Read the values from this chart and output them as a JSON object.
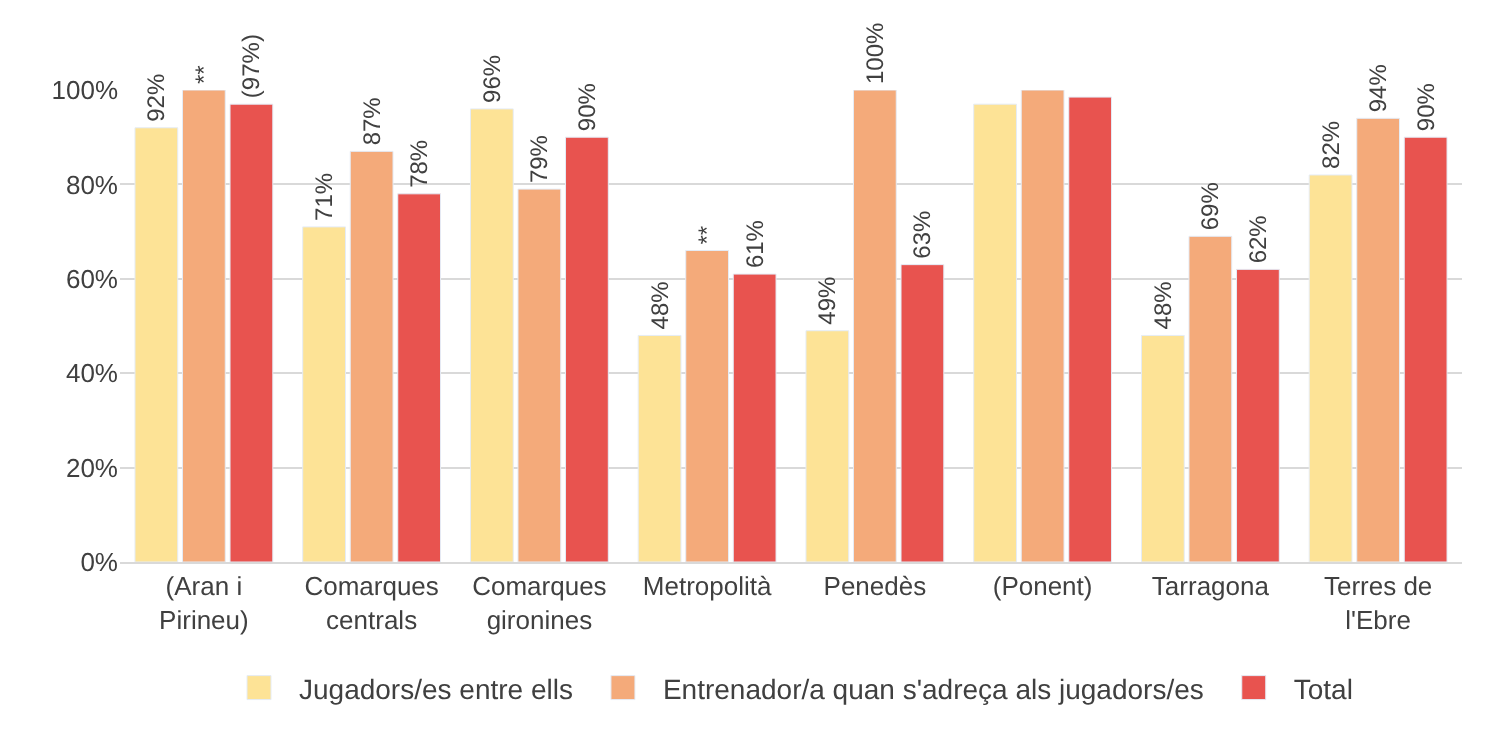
{
  "chart_data": {
    "type": "bar",
    "categories": [
      "(Aran i Pirineu)",
      "Comarques centrals",
      "Comarques gironines",
      "Metropolità",
      "Penedès",
      "(Ponent)",
      "Tarragona",
      "Terres de l'Ebre"
    ],
    "series": [
      {
        "name": "Jugadors/es entre ells",
        "color": "#fde396",
        "values": [
          92,
          71,
          96,
          48,
          49,
          97,
          48,
          82
        ],
        "value_labels": [
          "92%",
          "71%",
          "96%",
          "48%",
          "49%",
          null,
          "48%",
          "82%"
        ]
      },
      {
        "name": "Entrenador/a quan s'adreça als jugadors/es",
        "color": "#f4aa7a",
        "values": [
          100,
          87,
          79,
          66,
          100,
          100,
          69,
          94
        ],
        "value_labels": [
          "**",
          "87%",
          "79%",
          "**",
          "100%",
          null,
          "69%",
          "94%"
        ]
      },
      {
        "name": "Total",
        "color": "#e8534f",
        "values": [
          97,
          78,
          90,
          61,
          63,
          98.5,
          62,
          90
        ],
        "value_labels": [
          "(97%)",
          "78%",
          "90%",
          "61%",
          "63%",
          null,
          "62%",
          "90%"
        ]
      }
    ],
    "ylim": [
      0,
      100
    ],
    "yticks": [
      {
        "value": 0,
        "label": "0%"
      },
      {
        "value": 20,
        "label": "20%"
      },
      {
        "value": 40,
        "label": "40%"
      },
      {
        "value": 60,
        "label": "60%"
      },
      {
        "value": 80,
        "label": "80%"
      },
      {
        "value": 100,
        "label": "100%"
      }
    ],
    "grid": "y",
    "legend": "bottom"
  }
}
